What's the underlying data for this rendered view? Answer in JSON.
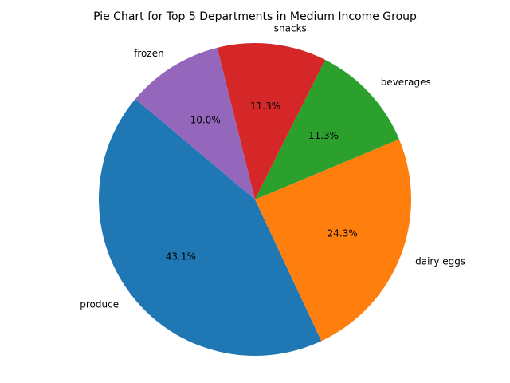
{
  "chart_data": {
    "type": "pie",
    "title": "Pie Chart for Top 5 Departments in Medium Income Group",
    "slices": [
      {
        "label": "produce",
        "value": 43.1,
        "pct_label": "43.1%",
        "color": "#1f77b4"
      },
      {
        "label": "dairy eggs",
        "value": 24.3,
        "pct_label": "24.3%",
        "color": "#ff7f0e"
      },
      {
        "label": "beverages",
        "value": 11.3,
        "pct_label": "11.3%",
        "color": "#2ca02c"
      },
      {
        "label": "snacks",
        "value": 11.3,
        "pct_label": "11.3%",
        "color": "#d62728"
      },
      {
        "label": "frozen",
        "value": 10.0,
        "pct_label": "10.0%",
        "color": "#9467bd"
      }
    ],
    "start_angle_deg": 140,
    "direction": "counterclockwise"
  }
}
